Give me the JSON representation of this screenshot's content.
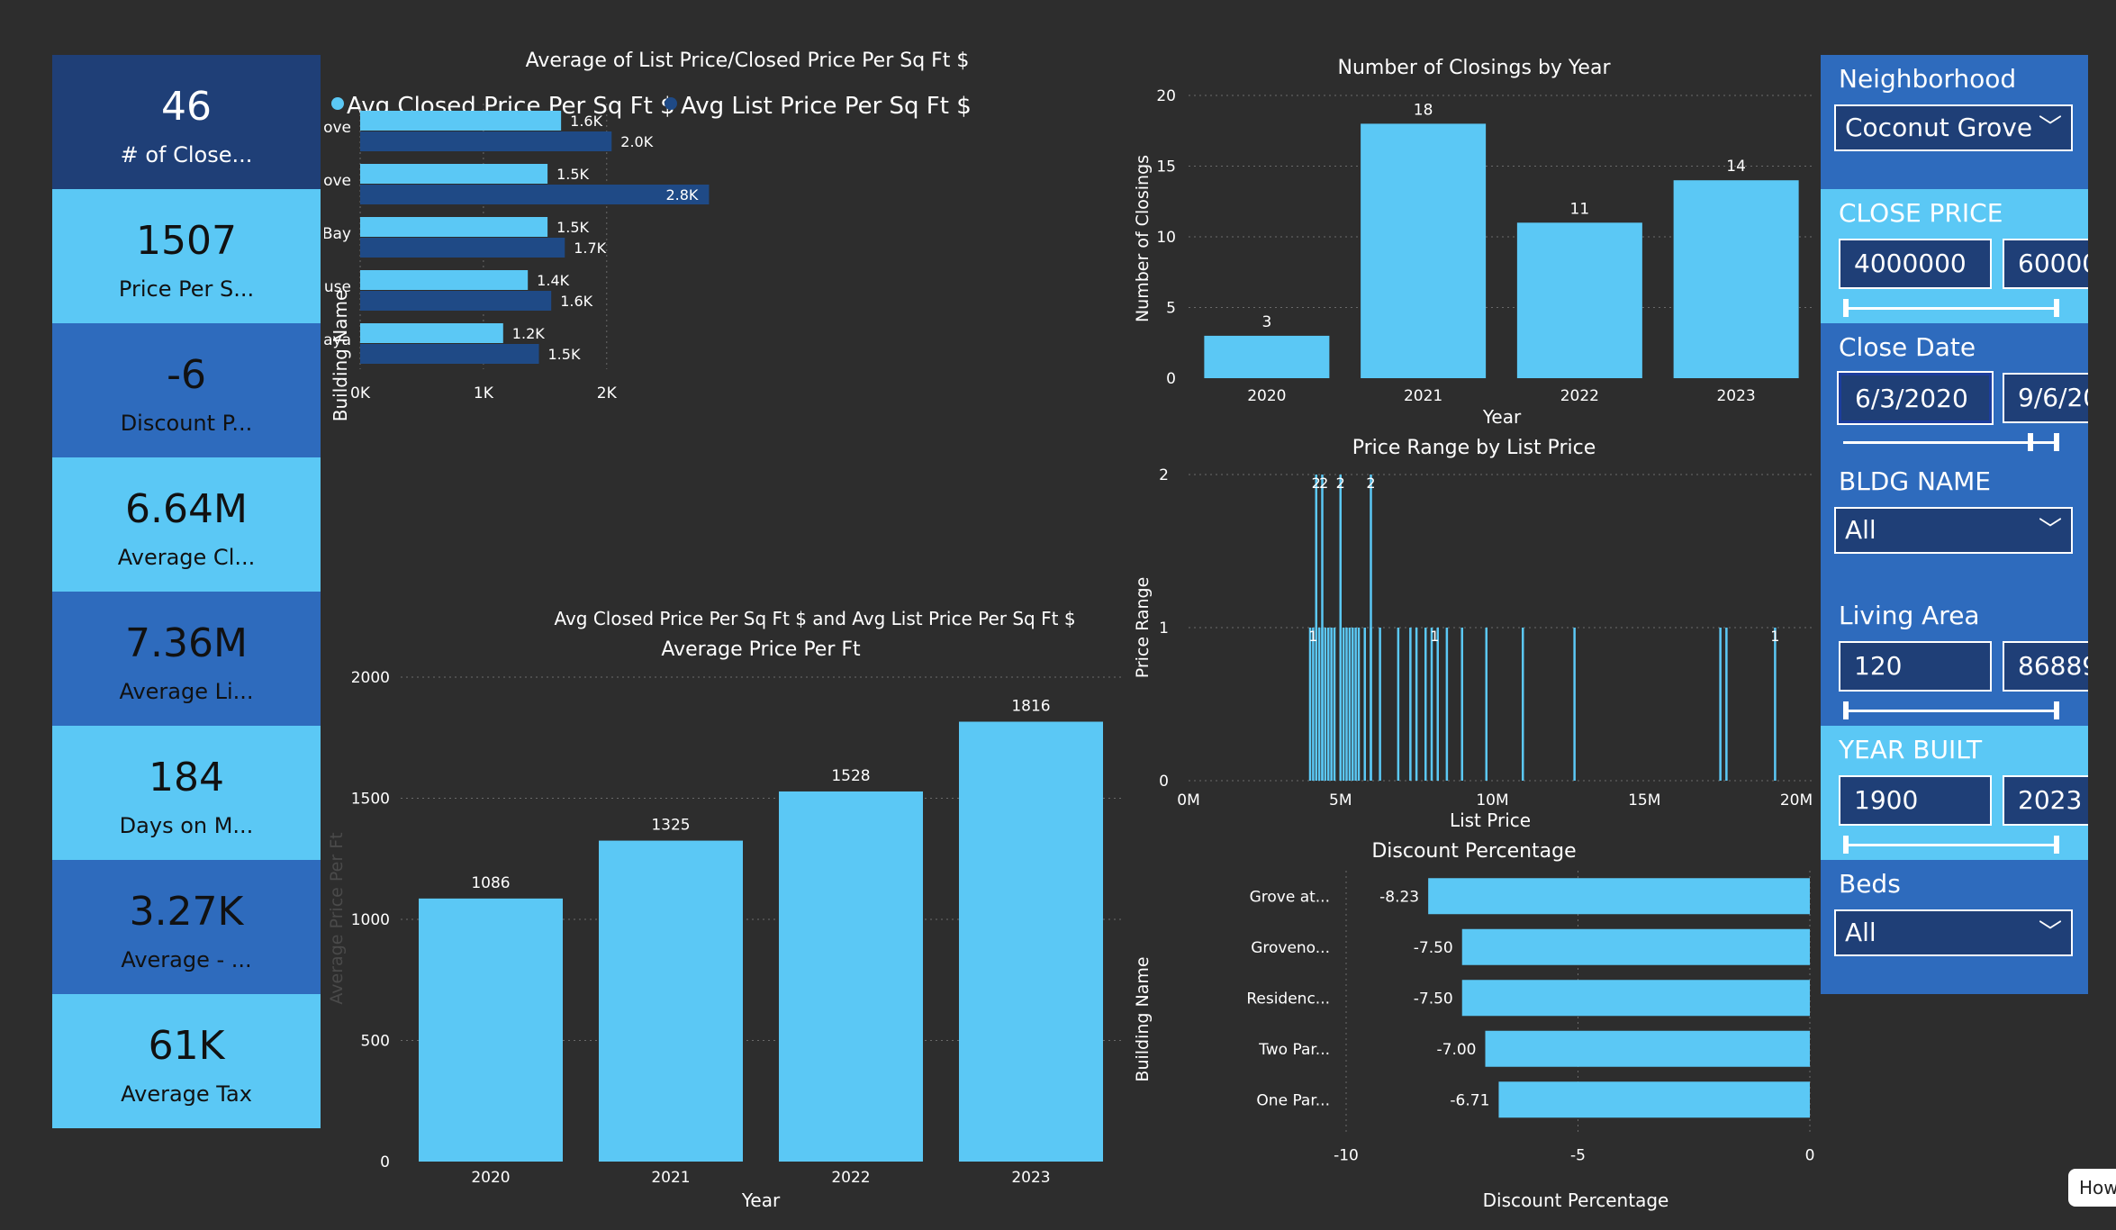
{
  "kpis": [
    {
      "value": "46",
      "label": "# of Close...",
      "bg": "#1f3f77",
      "dark": true
    },
    {
      "value": "1507",
      "label": "Price Per S...",
      "bg": "#5bc8f5",
      "dark": false
    },
    {
      "value": "-6",
      "label": "Discount P...",
      "bg": "#2e6bbd",
      "dark": false
    },
    {
      "value": "6.64M",
      "label": "Average Cl...",
      "bg": "#5bc8f5",
      "dark": false
    },
    {
      "value": "7.36M",
      "label": "Average Li...",
      "bg": "#2e6bbd",
      "dark": false
    },
    {
      "value": "184",
      "label": "Days on M...",
      "bg": "#5bc8f5",
      "dark": false
    },
    {
      "value": "3.27K",
      "label": "Average - ...",
      "bg": "#2e6bbd",
      "dark": false
    },
    {
      "value": "61K",
      "label": "Average Tax",
      "bg": "#5bc8f5",
      "dark": false
    }
  ],
  "colors": {
    "light": "#5bc8f5",
    "dark": "#1f4a86",
    "panel": "#2e6bbd",
    "bg": "#2d2d2d"
  },
  "chart_data": [
    {
      "id": "avg_price_sqft",
      "type": "bar",
      "orientation": "horizontal",
      "title": "Average of List Price/Closed Price Per Sq Ft $",
      "xlabel": "Avg Closed Price Per Sq Ft $ and Avg List Price Per Sq Ft $",
      "ylabel": "Building Name",
      "categories": [
        "Two Park Grove",
        "One Park Grove",
        "Grove at Grand Bay",
        "Grovenor House",
        "Residences at Vizcaya"
      ],
      "series": [
        {
          "name": "Avg Closed Price Per Sq Ft $",
          "values": [
            1630,
            1520,
            1520,
            1360,
            1160
          ],
          "labels": [
            "1.6K",
            "1.5K",
            "1.5K",
            "1.4K",
            "1.2K"
          ],
          "color": "#5bc8f5"
        },
        {
          "name": "Avg List Price Per Sq Ft $",
          "values": [
            2040,
            2830,
            1660,
            1550,
            1450
          ],
          "labels": [
            "2.0K",
            "2.8K",
            "1.7K",
            "1.6K",
            "1.5K"
          ],
          "color": "#1f4a86"
        }
      ],
      "xticks": [
        "0K",
        "1K",
        "2K"
      ],
      "xlim": [
        0,
        2900
      ],
      "legend": "top-left"
    },
    {
      "id": "closings_by_year",
      "type": "bar",
      "title": "Number of Closings by Year",
      "xlabel": "Year",
      "ylabel": "Number of Closings",
      "categories": [
        "2020",
        "2021",
        "2022",
        "2023"
      ],
      "values": [
        3,
        18,
        11,
        14
      ],
      "yticks": [
        0,
        5,
        10,
        15,
        20
      ],
      "ylim": [
        0,
        20
      ]
    },
    {
      "id": "price_range",
      "type": "bar",
      "title": "Price Range by List Price",
      "xlabel": "List Price",
      "ylabel": "Price Range",
      "xticks": [
        "0M",
        "5M",
        "10M",
        "15M",
        "20M"
      ],
      "xlim": [
        0,
        20
      ],
      "yticks": [
        0,
        1,
        2
      ],
      "ylim": [
        0,
        2
      ],
      "x_millions": [
        4.0,
        4.1,
        4.3,
        4.4,
        4.5,
        4.6,
        4.7,
        4.8,
        5.0,
        5.1,
        5.2,
        5.3,
        5.4,
        5.5,
        5.6,
        5.8,
        6.0,
        6.3,
        6.9,
        7.3,
        7.5,
        7.8,
        8.0,
        8.2,
        8.5,
        9.0,
        9.8,
        11.0,
        12.7,
        17.5,
        17.7,
        19.3,
        4.2,
        4.4,
        5.0,
        6.0
      ],
      "y_values": [
        1,
        1,
        1,
        1,
        1,
        1,
        1,
        1,
        1,
        1,
        1,
        1,
        1,
        1,
        1,
        1,
        1,
        1,
        1,
        1,
        1,
        1,
        1,
        1,
        1,
        1,
        1,
        1,
        1,
        1,
        1,
        1,
        2,
        2,
        2,
        2
      ],
      "annotations": [
        {
          "x": 4.2,
          "y": 2,
          "text": "2"
        },
        {
          "x": 4.45,
          "y": 2,
          "text": "2"
        },
        {
          "x": 5.0,
          "y": 2,
          "text": "2"
        },
        {
          "x": 6.0,
          "y": 2,
          "text": "2"
        },
        {
          "x": 4.1,
          "y": 1,
          "text": "1"
        },
        {
          "x": 8.1,
          "y": 1,
          "text": "1"
        },
        {
          "x": 19.3,
          "y": 1,
          "text": "1"
        }
      ]
    },
    {
      "id": "discount_pct",
      "type": "bar",
      "orientation": "horizontal",
      "title": "Discount Percentage",
      "xlabel": "Discount Percentage",
      "ylabel": "Building Name",
      "categories": [
        "Grove at...",
        "Groveno...",
        "Residenc...",
        "Two Par...",
        "One Par..."
      ],
      "values": [
        -8.23,
        -7.5,
        -7.5,
        -7.0,
        -6.71
      ],
      "labels": [
        "-8.23",
        "-7.50",
        "-7.50",
        "-7.00",
        "-6.71"
      ],
      "xticks": [
        -10,
        -5,
        0
      ],
      "xlim": [
        -10,
        0
      ]
    },
    {
      "id": "avg_price_per_ft",
      "type": "bar",
      "title": "Average Price Per Ft",
      "xlabel": "Year",
      "ylabel": "Average Price Per Ft",
      "categories": [
        "2020",
        "2021",
        "2022",
        "2023"
      ],
      "values": [
        1086,
        1325,
        1528,
        1816
      ],
      "yticks": [
        0,
        500,
        1000,
        1500,
        2000
      ],
      "ylim": [
        0,
        2000
      ]
    }
  ],
  "slicers": {
    "neighborhood": {
      "title": "Neighborhood",
      "value": "Coconut Grove",
      "chev": "﹀"
    },
    "close_price": {
      "title": "CLOSE PRICE",
      "min": "4000000",
      "max": "60000"
    },
    "close_date": {
      "title": "Close Date",
      "min": "6/3/2020",
      "max": "9/6/20"
    },
    "bldg_name": {
      "title": "BLDG NAME",
      "value": "All",
      "chev": "﹀"
    },
    "living_area": {
      "title": "Living Area",
      "min": "120",
      "max": "86889"
    },
    "year_built": {
      "title": "YEAR BUILT",
      "min": "1900",
      "max": "2023"
    },
    "beds": {
      "title": "Beds",
      "value": "All",
      "chev": "﹀"
    }
  },
  "help": {
    "label": "How"
  }
}
